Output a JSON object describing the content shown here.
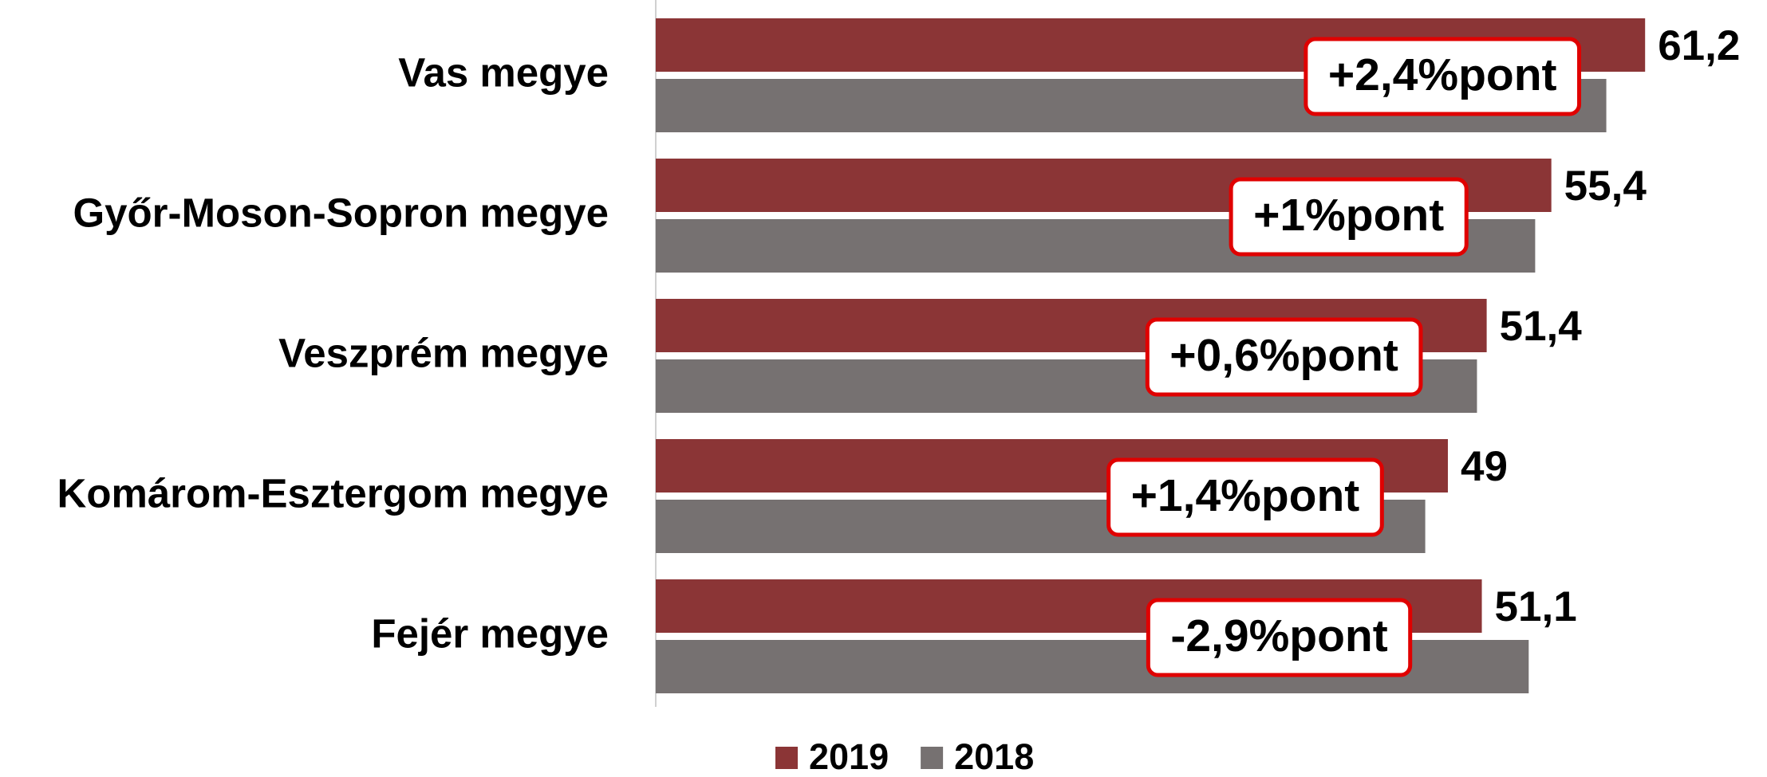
{
  "chart_data": {
    "type": "bar",
    "orientation": "horizontal",
    "categories": [
      "Vas megye",
      "Győr-Moson-Sopron megye",
      "Veszprém megye",
      "Komárom-Esztergom megye",
      "Fejér megye"
    ],
    "series": [
      {
        "name": "2019",
        "color": "#8b3536",
        "values": [
          61.2,
          55.4,
          51.4,
          49,
          51.1
        ],
        "value_labels": [
          "61,2",
          "55,4",
          "51,4",
          "49",
          "51,1"
        ]
      },
      {
        "name": "2018",
        "color": "#767171",
        "values": [
          58.8,
          54.4,
          50.8,
          47.6,
          54.0
        ]
      }
    ],
    "annotations": [
      {
        "text": "+2,4%pont",
        "color": "#375623"
      },
      {
        "text": "+1%pont",
        "color": "#375623"
      },
      {
        "text": "+0,6%pont",
        "color": "#375623"
      },
      {
        "text": "+1,4%pont",
        "color": "#375623"
      },
      {
        "text": "-2,9%pont",
        "color": "#ff0000"
      }
    ],
    "xlim": [
      0,
      68
    ],
    "legend": "bottom"
  }
}
